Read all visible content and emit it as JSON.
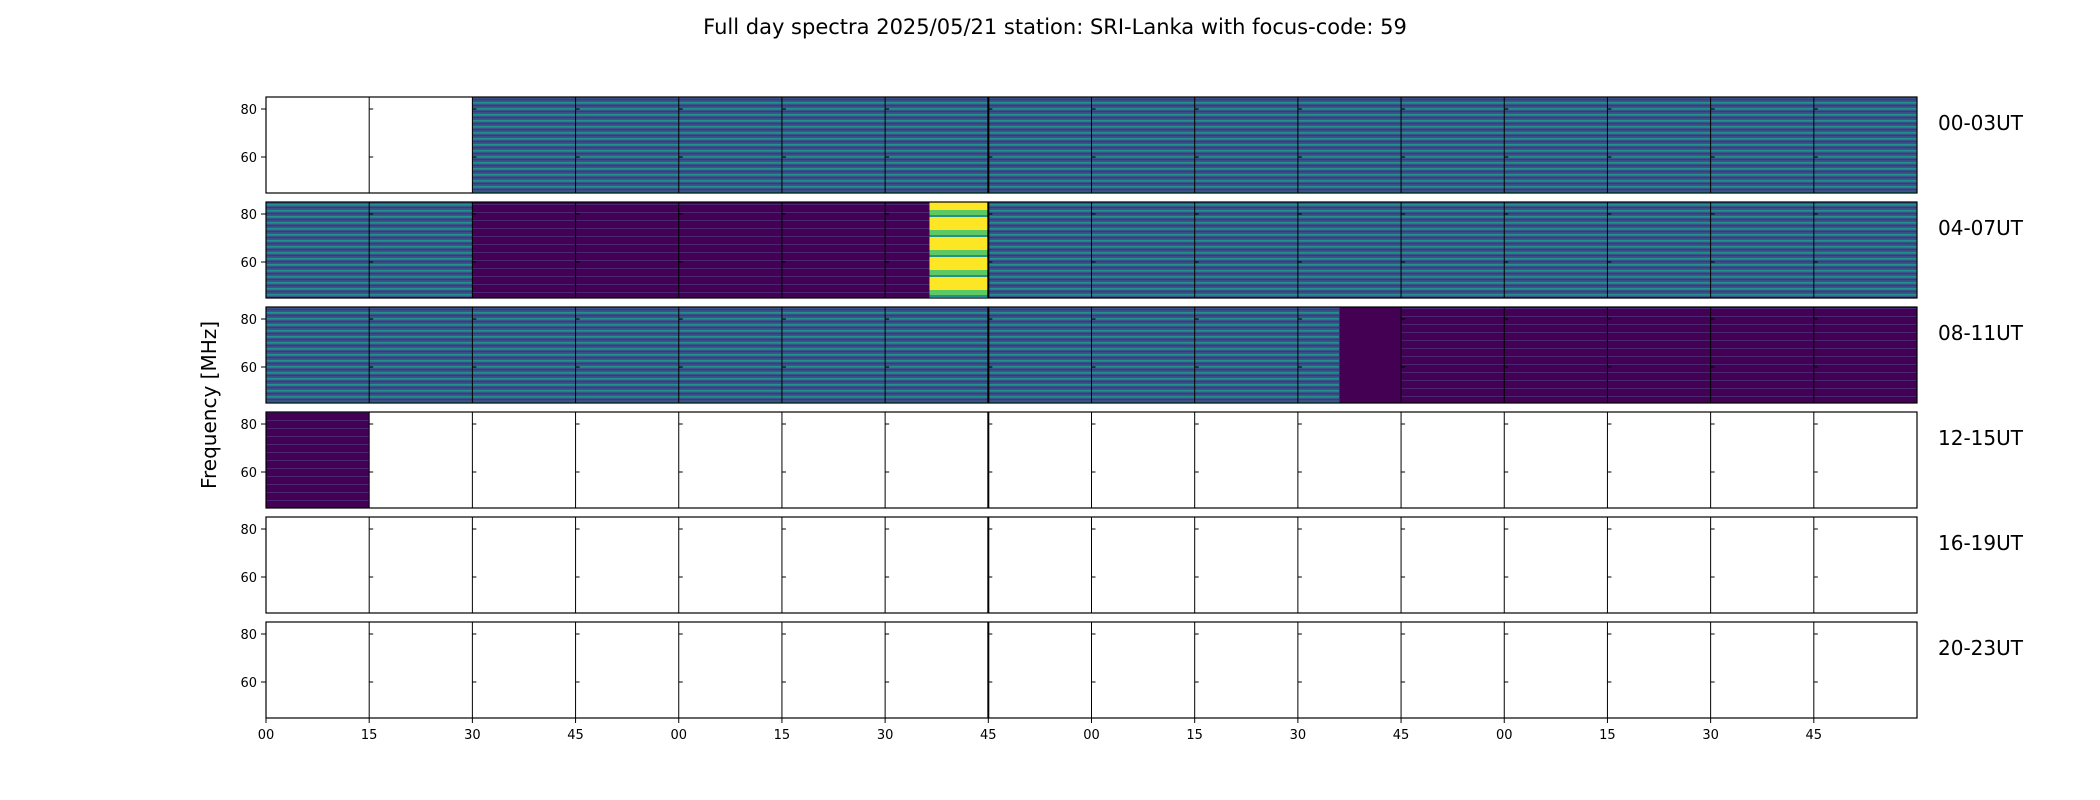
{
  "chart_data": {
    "type": "heatmap",
    "title": "Full day spectra 2025/05/21 station: SRI-Lanka with focus-code: 59",
    "ylabel": "Frequency [MHz]",
    "yticks": [
      60,
      80
    ],
    "ylim": [
      45,
      85
    ],
    "xticks": [
      "00",
      "15",
      "30",
      "45",
      "00",
      "15",
      "30",
      "45",
      "00",
      "15",
      "30",
      "45",
      "00",
      "15",
      "30",
      "45"
    ],
    "grid": false,
    "colormap": "viridis",
    "colors": {
      "low": "#440154",
      "mid": "#3b528b",
      "teal": "#21918c",
      "high": "#fde725"
    },
    "rows": [
      {
        "label": "00-03UT",
        "panels": [
          "empty",
          "empty",
          "data",
          "data",
          "data",
          "data",
          "data",
          "data",
          "data",
          "data",
          "data",
          "data",
          "data",
          "data",
          "data",
          "data"
        ]
      },
      {
        "label": "04-07UT",
        "panels": [
          "data",
          "data",
          "dark",
          "dark",
          "dark",
          "dark",
          "burst",
          "data",
          "data",
          "data",
          "data",
          "data",
          "data",
          "data",
          "data",
          "data"
        ]
      },
      {
        "label": "08-11UT",
        "panels": [
          "data",
          "data",
          "data",
          "data",
          "data",
          "data",
          "data",
          "data",
          "data",
          "data",
          "partial",
          "dark",
          "dark",
          "dark",
          "dark",
          "dark"
        ]
      },
      {
        "label": "12-15UT",
        "panels": [
          "dark",
          "empty",
          "empty",
          "empty",
          "empty",
          "empty",
          "empty",
          "empty",
          "empty",
          "empty",
          "empty",
          "empty",
          "empty",
          "empty",
          "empty",
          "empty"
        ]
      },
      {
        "label": "16-19UT",
        "panels": [
          "empty",
          "empty",
          "empty",
          "empty",
          "empty",
          "empty",
          "empty",
          "empty",
          "empty",
          "empty",
          "empty",
          "empty",
          "empty",
          "empty",
          "empty",
          "empty"
        ]
      },
      {
        "label": "20-23UT",
        "panels": [
          "empty",
          "empty",
          "empty",
          "empty",
          "empty",
          "empty",
          "empty",
          "empty",
          "empty",
          "empty",
          "empty",
          "empty",
          "empty",
          "empty",
          "empty",
          "empty"
        ]
      }
    ]
  }
}
